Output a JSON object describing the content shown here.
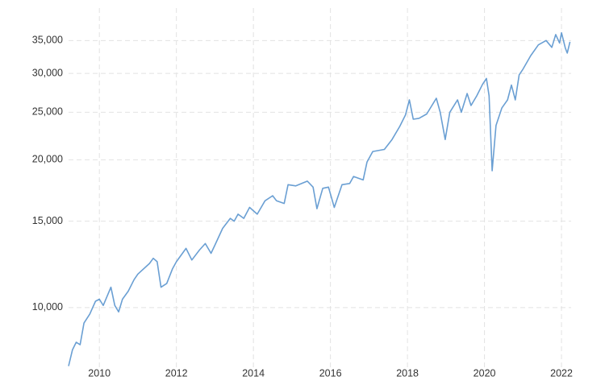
{
  "chart_data": {
    "type": "line",
    "log_y": true,
    "grid": true,
    "xlim": [
      2009.2,
      2022.25
    ],
    "xticks": [
      2010,
      2012,
      2014,
      2016,
      2018,
      2020,
      2022
    ],
    "ylim": [
      7500,
      40000
    ],
    "yticks": [
      {
        "value": 10000,
        "label": "10,000"
      },
      {
        "value": 15000,
        "label": "15,000"
      },
      {
        "value": 20000,
        "label": "20,000"
      },
      {
        "value": 25000,
        "label": "25,000"
      },
      {
        "value": 30000,
        "label": "30,000"
      },
      {
        "value": 35000,
        "label": "35,000"
      }
    ],
    "x": [
      2009.2,
      2009.3,
      2009.4,
      2009.5,
      2009.6,
      2009.75,
      2009.9,
      2010.0,
      2010.1,
      2010.3,
      2010.4,
      2010.5,
      2010.6,
      2010.75,
      2010.9,
      2011.0,
      2011.3,
      2011.4,
      2011.5,
      2011.6,
      2011.75,
      2011.9,
      2012.0,
      2012.25,
      2012.4,
      2012.6,
      2012.75,
      2012.9,
      2013.0,
      2013.2,
      2013.4,
      2013.5,
      2013.6,
      2013.75,
      2013.9,
      2014.1,
      2014.3,
      2014.5,
      2014.6,
      2014.8,
      2014.9,
      2015.1,
      2015.4,
      2015.55,
      2015.65,
      2015.8,
      2015.95,
      2016.1,
      2016.3,
      2016.5,
      2016.6,
      2016.85,
      2016.95,
      2017.1,
      2017.4,
      2017.6,
      2017.8,
      2017.95,
      2018.05,
      2018.15,
      2018.3,
      2018.5,
      2018.75,
      2018.85,
      2018.98,
      2019.1,
      2019.3,
      2019.4,
      2019.55,
      2019.65,
      2019.8,
      2019.95,
      2020.05,
      2020.12,
      2020.2,
      2020.3,
      2020.45,
      2020.6,
      2020.7,
      2020.8,
      2020.9,
      2021.0,
      2021.2,
      2021.4,
      2021.6,
      2021.75,
      2021.85,
      2021.95,
      2022.0,
      2022.1,
      2022.15,
      2022.22
    ],
    "series": [
      {
        "color": "#6a9fd3",
        "values": [
          7600,
          8200,
          8500,
          8400,
          9300,
          9700,
          10300,
          10400,
          10100,
          11000,
          10100,
          9800,
          10400,
          10800,
          11400,
          11700,
          12300,
          12600,
          12400,
          11000,
          11200,
          12000,
          12400,
          13200,
          12500,
          13100,
          13500,
          12900,
          13400,
          14500,
          15200,
          15000,
          15500,
          15200,
          16000,
          15500,
          16500,
          16900,
          16500,
          16300,
          17800,
          17700,
          18100,
          17600,
          15900,
          17500,
          17600,
          16000,
          17800,
          17900,
          18500,
          18200,
          19800,
          20800,
          21000,
          22000,
          23400,
          24700,
          26500,
          24200,
          24300,
          24800,
          26700,
          25000,
          22000,
          25000,
          26500,
          25000,
          27300,
          25800,
          27000,
          28500,
          29300,
          27000,
          19000,
          23500,
          25500,
          26500,
          28400,
          26500,
          29800,
          30600,
          32600,
          34300,
          35000,
          33900,
          36000,
          34600,
          36300,
          33800,
          33000,
          34800
        ]
      }
    ]
  }
}
